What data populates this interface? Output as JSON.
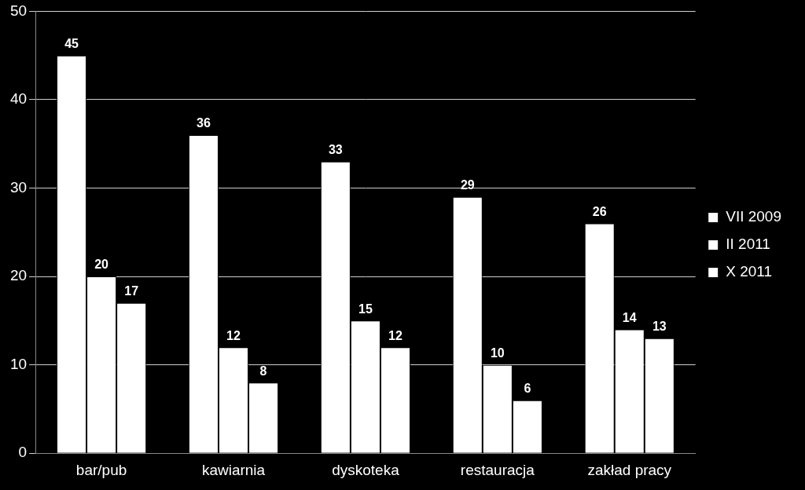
{
  "chart_data": {
    "type": "bar",
    "categories": [
      "bar/pub",
      "kawiarnia",
      "dyskoteka",
      "restauracja",
      "zakład pracy"
    ],
    "series": [
      {
        "name": "VII 2009",
        "color": "#ffffff",
        "values": [
          45,
          36,
          33,
          29,
          26
        ]
      },
      {
        "name": "II 2011",
        "color": "#ffffff",
        "values": [
          20,
          12,
          15,
          10,
          14
        ]
      },
      {
        "name": "X 2011",
        "color": "#ffffff",
        "values": [
          17,
          8,
          12,
          6,
          13
        ]
      }
    ],
    "ylim": [
      0,
      50
    ],
    "yticks": [
      0,
      10,
      20,
      30,
      40,
      50
    ],
    "grid": true,
    "legend": "right",
    "data_labels": true
  }
}
